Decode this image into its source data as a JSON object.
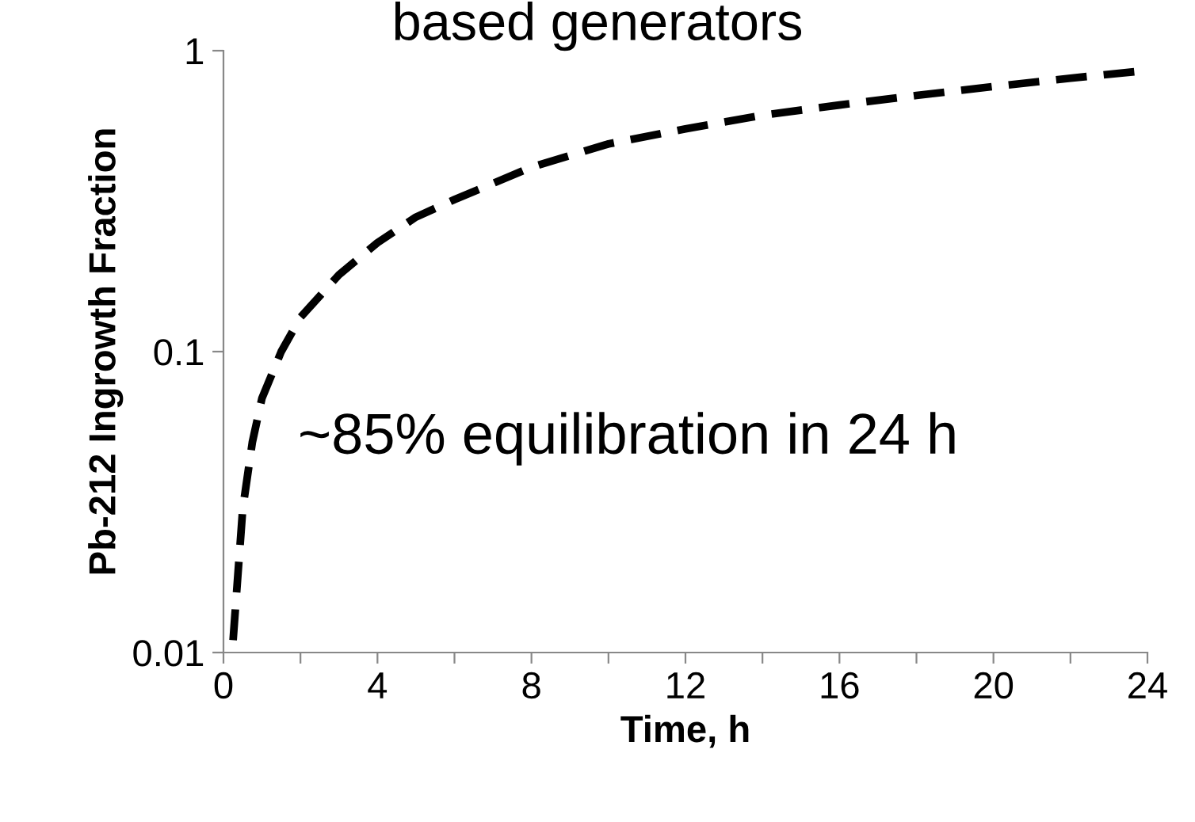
{
  "chart_data": {
    "type": "line",
    "title": "based generators",
    "xlabel": "Time, h",
    "ylabel": "Pb-212 Ingrowth Fraction",
    "x": [
      0.25,
      0.5,
      0.75,
      1,
      1.5,
      2,
      3,
      4,
      5,
      6,
      8,
      10,
      12,
      14,
      16,
      18,
      20,
      22,
      24
    ],
    "series": [
      {
        "color": "#000000",
        "values": [
          0.011,
          0.03,
          0.05,
          0.07,
          0.1,
          0.13,
          0.18,
          0.23,
          0.28,
          0.32,
          0.41,
          0.49,
          0.55,
          0.61,
          0.66,
          0.71,
          0.76,
          0.81,
          0.86
        ]
      }
    ],
    "line_style": "dashed",
    "marker": "none",
    "log": "y",
    "grid": false,
    "legend": false,
    "xlim": [
      0,
      24
    ],
    "xticks": [
      0,
      {
        "value": 2,
        "label": null
      },
      4,
      {
        "value": 6,
        "label": null
      },
      8,
      {
        "value": 10,
        "label": null
      },
      12,
      {
        "value": 14,
        "label": null
      },
      16,
      {
        "value": 18,
        "label": null
      },
      20,
      {
        "value": 22,
        "label": null
      },
      24
    ],
    "ylim": [
      0.01,
      1
    ],
    "yticks": [
      0.01,
      0.1,
      1
    ],
    "annotations": [
      "~85% equilibration in 24 h"
    ]
  }
}
